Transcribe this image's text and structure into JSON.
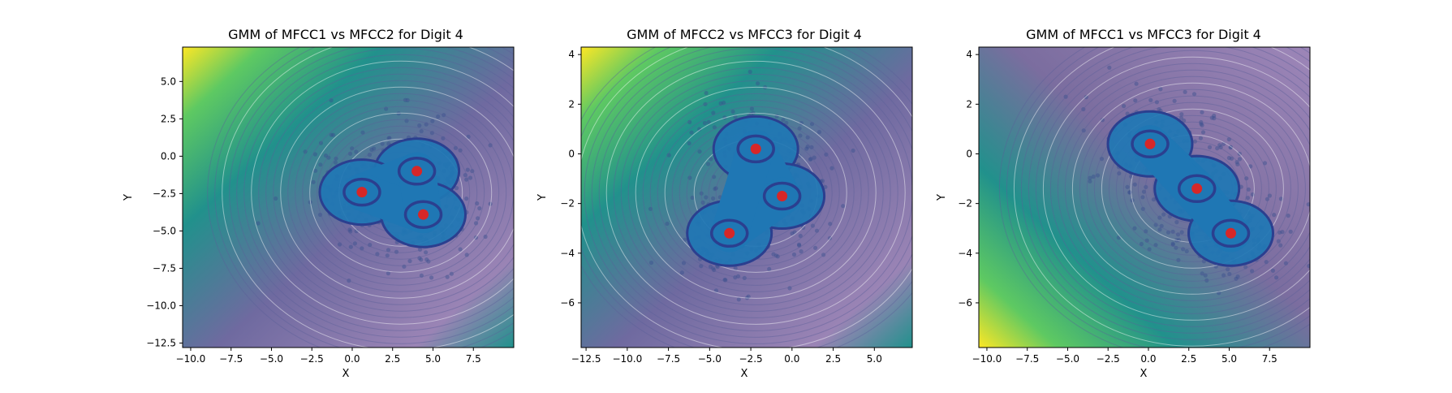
{
  "figure": {
    "colors": {
      "background": "#ffffff",
      "scatter_points": "#3a4f8f",
      "filled_core": "#1f77b4",
      "contour_lines": "#5b5f9a",
      "centers": "#d62728",
      "colormap": [
        "#440154",
        "#3b528b",
        "#21918c",
        "#5ec962",
        "#fde725"
      ]
    }
  },
  "chart_data": [
    {
      "type": "contour",
      "title": "GMM of MFCC1 vs MFCC2 for Digit 4",
      "xlabel": "X",
      "ylabel": "Y",
      "xlim": [
        -10.5,
        10
      ],
      "ylim": [
        -12.8,
        7.3
      ],
      "xticks": [
        -10.0,
        -7.5,
        -5.0,
        -2.5,
        0.0,
        2.5,
        5.0,
        7.5
      ],
      "xtick_labels": [
        "−10.0",
        "−7.5",
        "−5.0",
        "−2.5",
        "0.0",
        "2.5",
        "5.0",
        "7.5"
      ],
      "yticks": [
        5.0,
        2.5,
        0.0,
        -2.5,
        -5.0,
        -7.5,
        -10.0,
        -12.5
      ],
      "ytick_labels": [
        "5.0",
        "2.5",
        "0.0",
        "−2.5",
        "−5.0",
        "−7.5",
        "−10.0",
        "−12.5"
      ],
      "centers": [
        {
          "x": 4.0,
          "y": -1.0
        },
        {
          "x": 0.6,
          "y": -2.4
        },
        {
          "x": 4.4,
          "y": -3.9
        }
      ]
    },
    {
      "type": "contour",
      "title": "GMM of MFCC2 vs MFCC3 for Digit 4",
      "xlabel": "X",
      "ylabel": "Y",
      "xlim": [
        -12.8,
        7.3
      ],
      "ylim": [
        -7.8,
        4.3
      ],
      "xticks": [
        -12.5,
        -10.0,
        -7.5,
        -5.0,
        -2.5,
        0.0,
        2.5,
        5.0
      ],
      "xtick_labels": [
        "−12.5",
        "−10.0",
        "−7.5",
        "−5.0",
        "−2.5",
        "0.0",
        "2.5",
        "5.0"
      ],
      "yticks": [
        4,
        2,
        0,
        -2,
        -4,
        -6
      ],
      "ytick_labels": [
        "4",
        "2",
        "0",
        "−2",
        "−4",
        "−6"
      ],
      "centers": [
        {
          "x": -2.2,
          "y": 0.2
        },
        {
          "x": -0.6,
          "y": -1.7
        },
        {
          "x": -3.8,
          "y": -3.2
        }
      ]
    },
    {
      "type": "contour",
      "title": "GMM of MFCC1 vs MFCC3 for Digit 4",
      "xlabel": "X",
      "ylabel": "Y",
      "xlim": [
        -10.5,
        10
      ],
      "ylim": [
        -7.8,
        4.3
      ],
      "xticks": [
        -10.0,
        -7.5,
        -5.0,
        -2.5,
        0.0,
        2.5,
        5.0,
        7.5
      ],
      "xtick_labels": [
        "−10.0",
        "−7.5",
        "−5.0",
        "−2.5",
        "0.0",
        "2.5",
        "5.0",
        "7.5"
      ],
      "yticks": [
        4,
        2,
        0,
        -2,
        -4,
        -6
      ],
      "ytick_labels": [
        "4",
        "2",
        "0",
        "−2",
        "−4",
        "−6"
      ],
      "centers": [
        {
          "x": 0.1,
          "y": 0.4
        },
        {
          "x": 3.0,
          "y": -1.4
        },
        {
          "x": 5.1,
          "y": -3.2
        }
      ]
    }
  ]
}
